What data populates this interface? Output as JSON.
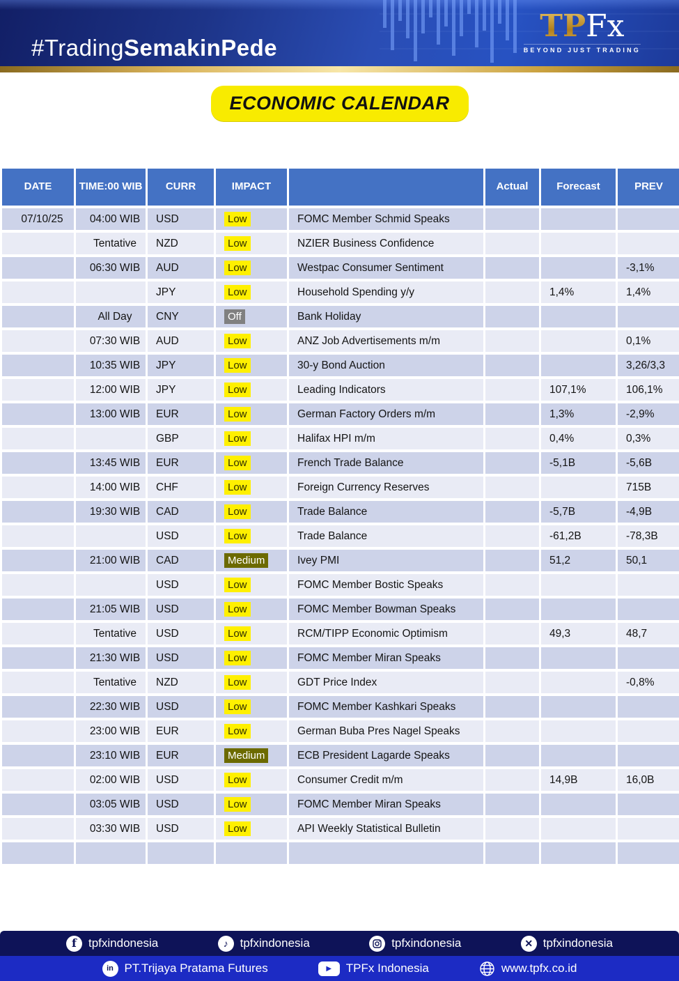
{
  "banner": {
    "hashtag_light": "#Trading",
    "hashtag_bold": "SemakinPede",
    "logo_tp": "TP",
    "logo_fx": "Fx",
    "logo_tagline": "BEYOND JUST TRADING"
  },
  "title": "ECONOMIC CALENDAR",
  "table": {
    "headers": [
      "DATE",
      "TIME:00 WIB",
      "CURR",
      "IMPACT",
      "",
      "Actual",
      "Forecast",
      "PREV"
    ],
    "rows": [
      {
        "date": "07/10/25",
        "time": "04:00 WIB",
        "curr": "USD",
        "impact": "Low",
        "event": "FOMC Member Schmid Speaks",
        "actual": "",
        "forecast": "",
        "prev": ""
      },
      {
        "date": "",
        "time": "Tentative",
        "curr": "NZD",
        "impact": "Low",
        "event": "NZIER Business Confidence",
        "actual": "",
        "forecast": "",
        "prev": ""
      },
      {
        "date": "",
        "time": "06:30 WIB",
        "curr": "AUD",
        "impact": "Low",
        "event": "Westpac Consumer Sentiment",
        "actual": "",
        "forecast": "",
        "prev": "-3,1%"
      },
      {
        "date": "",
        "time": "",
        "curr": "JPY",
        "impact": "Low",
        "event": "Household Spending y/y",
        "actual": "",
        "forecast": "1,4%",
        "prev": "1,4%"
      },
      {
        "date": "",
        "time": "All Day",
        "curr": "CNY",
        "impact": "Off",
        "event": "Bank Holiday",
        "actual": "",
        "forecast": "",
        "prev": ""
      },
      {
        "date": "",
        "time": "07:30 WIB",
        "curr": "AUD",
        "impact": "Low",
        "event": "ANZ Job Advertisements m/m",
        "actual": "",
        "forecast": "",
        "prev": "0,1%"
      },
      {
        "date": "",
        "time": "10:35 WIB",
        "curr": "JPY",
        "impact": "Low",
        "event": "30-y Bond Auction",
        "actual": "",
        "forecast": "",
        "prev": "3,26/3,3"
      },
      {
        "date": "",
        "time": "12:00 WIB",
        "curr": "JPY",
        "impact": "Low",
        "event": "Leading Indicators",
        "actual": "",
        "forecast": "107,1%",
        "prev": "106,1%"
      },
      {
        "date": "",
        "time": "13:00 WIB",
        "curr": "EUR",
        "impact": "Low",
        "event": "German Factory Orders m/m",
        "actual": "",
        "forecast": "1,3%",
        "prev": "-2,9%"
      },
      {
        "date": "",
        "time": "",
        "curr": "GBP",
        "impact": "Low",
        "event": "Halifax HPI m/m",
        "actual": "",
        "forecast": "0,4%",
        "prev": "0,3%"
      },
      {
        "date": "",
        "time": "13:45 WIB",
        "curr": "EUR",
        "impact": "Low",
        "event": "French Trade Balance",
        "actual": "",
        "forecast": "-5,1B",
        "prev": "-5,6B"
      },
      {
        "date": "",
        "time": "14:00 WIB",
        "curr": "CHF",
        "impact": "Low",
        "event": "Foreign Currency Reserves",
        "actual": "",
        "forecast": "",
        "prev": "715B"
      },
      {
        "date": "",
        "time": "19:30 WIB",
        "curr": "CAD",
        "impact": "Low",
        "event": "Trade Balance",
        "actual": "",
        "forecast": "-5,7B",
        "prev": "-4,9B"
      },
      {
        "date": "",
        "time": "",
        "curr": "USD",
        "impact": "Low",
        "event": "Trade Balance",
        "actual": "",
        "forecast": "-61,2B",
        "prev": "-78,3B"
      },
      {
        "date": "",
        "time": "21:00 WIB",
        "curr": "CAD",
        "impact": "Medium",
        "event": "Ivey PMI",
        "actual": "",
        "forecast": "51,2",
        "prev": "50,1"
      },
      {
        "date": "",
        "time": "",
        "curr": "USD",
        "impact": "Low",
        "event": "FOMC Member Bostic Speaks",
        "actual": "",
        "forecast": "",
        "prev": ""
      },
      {
        "date": "",
        "time": "21:05 WIB",
        "curr": "USD",
        "impact": "Low",
        "event": "FOMC Member Bowman Speaks",
        "actual": "",
        "forecast": "",
        "prev": ""
      },
      {
        "date": "",
        "time": "Tentative",
        "curr": "USD",
        "impact": "Low",
        "event": "RCM/TIPP Economic Optimism",
        "actual": "",
        "forecast": "49,3",
        "prev": "48,7"
      },
      {
        "date": "",
        "time": "21:30 WIB",
        "curr": "USD",
        "impact": "Low",
        "event": "FOMC Member Miran Speaks",
        "actual": "",
        "forecast": "",
        "prev": ""
      },
      {
        "date": "",
        "time": "Tentative",
        "curr": "NZD",
        "impact": "Low",
        "event": "GDT Price Index",
        "actual": "",
        "forecast": "",
        "prev": "-0,8%"
      },
      {
        "date": "",
        "time": "22:30 WIB",
        "curr": "USD",
        "impact": "Low",
        "event": "FOMC Member Kashkari Speaks",
        "actual": "",
        "forecast": "",
        "prev": ""
      },
      {
        "date": "",
        "time": "23:00 WIB",
        "curr": "EUR",
        "impact": "Low",
        "event": "German Buba Pres Nagel Speaks",
        "actual": "",
        "forecast": "",
        "prev": ""
      },
      {
        "date": "",
        "time": "23:10 WIB",
        "curr": "EUR",
        "impact": "Medium",
        "event": "ECB President Lagarde Speaks",
        "actual": "",
        "forecast": "",
        "prev": ""
      },
      {
        "date": "",
        "time": "02:00 WIB",
        "curr": "USD",
        "impact": "Low",
        "event": "Consumer Credit m/m",
        "actual": "",
        "forecast": "14,9B",
        "prev": "16,0B"
      },
      {
        "date": "",
        "time": "03:05 WIB",
        "curr": "USD",
        "impact": "Low",
        "event": "FOMC Member Miran Speaks",
        "actual": "",
        "forecast": "",
        "prev": ""
      },
      {
        "date": "",
        "time": "03:30 WIB",
        "curr": "USD",
        "impact": "Low",
        "event": "API Weekly Statistical Bulletin",
        "actual": "",
        "forecast": "",
        "prev": ""
      },
      {
        "date": "",
        "time": "",
        "curr": "",
        "impact": "",
        "event": "",
        "actual": "",
        "forecast": "",
        "prev": ""
      }
    ]
  },
  "footer": {
    "social_top": [
      {
        "icon": "facebook-icon",
        "label": "tpfxindonesia"
      },
      {
        "icon": "tiktok-icon",
        "label": "tpfxindonesia"
      },
      {
        "icon": "instagram-icon",
        "label": "tpfxindonesia"
      },
      {
        "icon": "x-icon",
        "label": "tpfxindonesia"
      }
    ],
    "social_bottom": [
      {
        "icon": "linkedin-icon",
        "label": "PT.Trijaya Pratama Futures"
      },
      {
        "icon": "youtube-icon",
        "label": "TPFx Indonesia"
      },
      {
        "icon": "globe-icon",
        "label": "www.tpfx.co.id"
      }
    ]
  },
  "colors": {
    "header_blue": "#4472C4",
    "row_dark": "#CDD3E9",
    "row_light": "#E9EBF5",
    "impact_low_bg": "#FFF000",
    "impact_medium_bg": "#6C6A00",
    "impact_off_bg": "#808080",
    "pill_yellow": "#F8EB00",
    "footer_top_bg": "#0E1358",
    "footer_bottom_bg": "#1C2BC4",
    "accent_gold": "#D4A73F"
  }
}
